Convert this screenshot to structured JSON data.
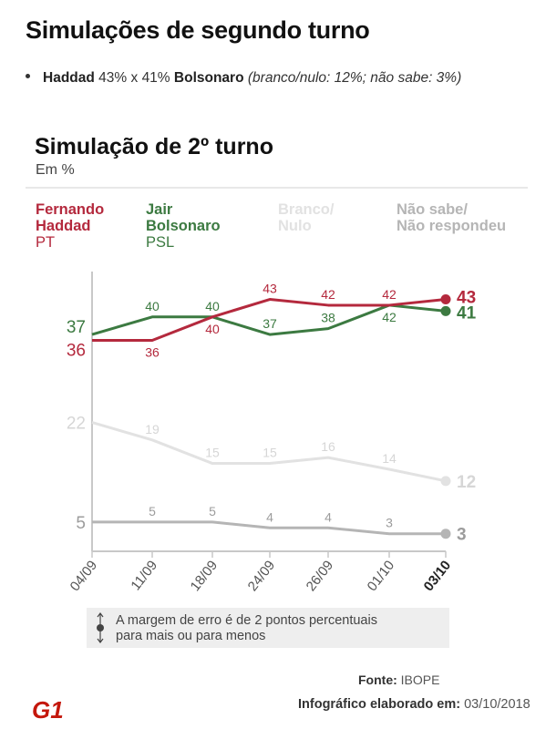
{
  "header": {
    "title": "Simulações de segundo turno",
    "bullet": {
      "candidate_a": "Haddad",
      "pct_a": "43%",
      "separator": "x",
      "pct_b": "41%",
      "candidate_b": "Bolsonaro",
      "note": "(branco/nulo: 12%; não sabe: 3%)"
    }
  },
  "chart_data": {
    "type": "line",
    "title": "Simulação de 2º turno",
    "subtitle": "Em %",
    "categories": [
      "04/09",
      "11/09",
      "18/09",
      "24/09",
      "26/09",
      "01/10",
      "03/10"
    ],
    "ylim": [
      0,
      50
    ],
    "grid": false,
    "legend_position": "top",
    "series": [
      {
        "key": "haddad",
        "line1": "Fernando",
        "line2": "Haddad",
        "party": "PT",
        "color": "#b4293d",
        "values": [
          36,
          36,
          40,
          43,
          42,
          42,
          43
        ]
      },
      {
        "key": "bolsonaro",
        "line1": "Jair",
        "line2": "Bolsonaro",
        "party": "PSL",
        "color": "#3c7a41",
        "values": [
          37,
          40,
          40,
          37,
          38,
          42,
          41
        ]
      },
      {
        "key": "branco",
        "line1": "Branco/",
        "line2": "Nulo",
        "party": "",
        "color": "#e2e2e2",
        "values": [
          22,
          19,
          15,
          15,
          16,
          14,
          12
        ]
      },
      {
        "key": "naosabe",
        "line1": "Não sabe/",
        "line2": "Não respondeu",
        "party": "",
        "color": "#b5b5b5",
        "values": [
          5,
          5,
          5,
          4,
          4,
          3,
          3
        ]
      }
    ],
    "axis_color": "#c8c8c8"
  },
  "note": {
    "line1": "A margem de erro é de 2 pontos percentuais",
    "line2": "para mais ou para menos"
  },
  "footer": {
    "source_label": "Fonte:",
    "source_value": "IBOPE",
    "made_label": "Infográfico elaborado em:",
    "made_value": "03/10/2018",
    "logo_text": "G1",
    "logo_color": "#c4170c"
  }
}
